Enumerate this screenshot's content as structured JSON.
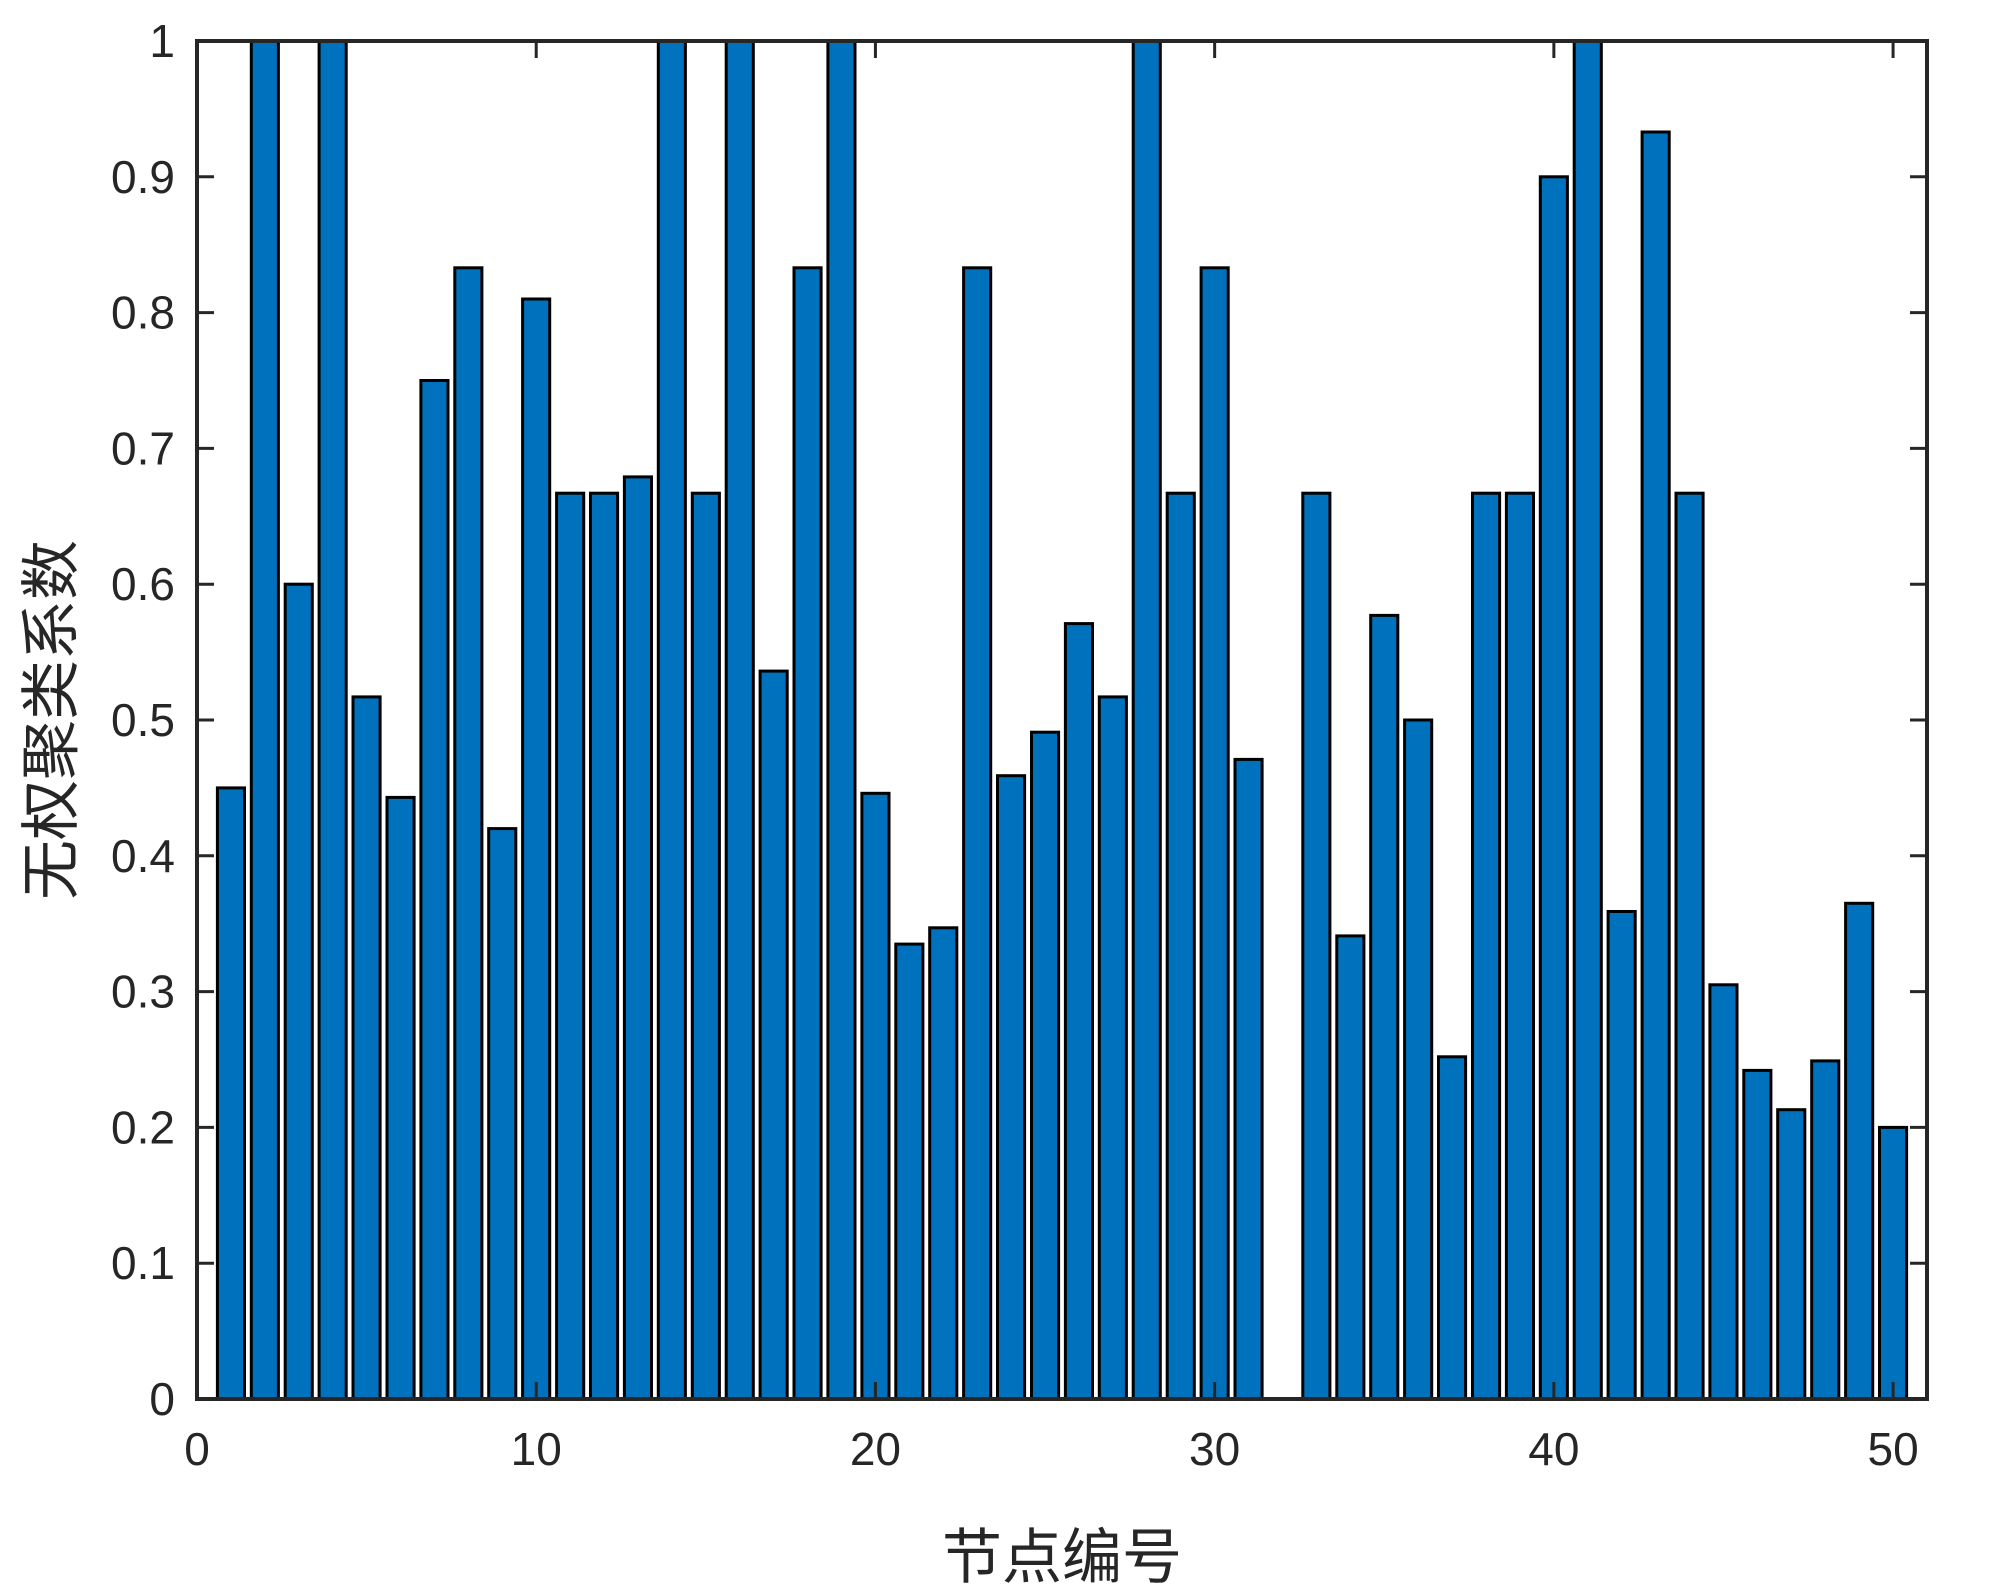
{
  "chart_data": {
    "type": "bar",
    "title": "",
    "xlabel": "节点编号",
    "ylabel": "无权聚类系数",
    "x": [
      1,
      2,
      3,
      4,
      5,
      6,
      7,
      8,
      9,
      10,
      11,
      12,
      13,
      14,
      15,
      16,
      17,
      18,
      19,
      20,
      21,
      22,
      23,
      24,
      25,
      26,
      27,
      28,
      29,
      30,
      31,
      32,
      33,
      34,
      35,
      36,
      37,
      38,
      39,
      40,
      41,
      42,
      43,
      44,
      45,
      46,
      47,
      48,
      49,
      50
    ],
    "values": [
      0.45,
      1,
      0.6,
      1,
      0.517,
      0.443,
      0.75,
      0.833,
      0.42,
      0.81,
      0.667,
      0.667,
      0.679,
      1,
      0.667,
      1,
      0.536,
      0.833,
      1,
      0.446,
      0.335,
      0.347,
      0.833,
      0.459,
      0.491,
      0.571,
      0.517,
      1,
      0.667,
      0.833,
      0.471,
      0,
      0.667,
      0.341,
      0.577,
      0.5,
      0.252,
      0.667,
      0.667,
      0.9,
      1,
      0.359,
      0.933,
      0.667,
      0.305,
      0.242,
      0.213,
      0.249,
      0.365,
      0.2
    ],
    "xlim": [
      0,
      51
    ],
    "ylim": [
      0,
      1
    ],
    "xticks": [
      "0",
      "10",
      "20",
      "30",
      "40",
      "50"
    ],
    "yticks": [
      "0",
      "0.1",
      "0.2",
      "0.3",
      "0.4",
      "0.5",
      "0.6",
      "0.7",
      "0.8",
      "0.9",
      "1"
    ],
    "bar_color": "#0072BD",
    "edge_color": "#000000",
    "grid": false,
    "legend": "none"
  }
}
